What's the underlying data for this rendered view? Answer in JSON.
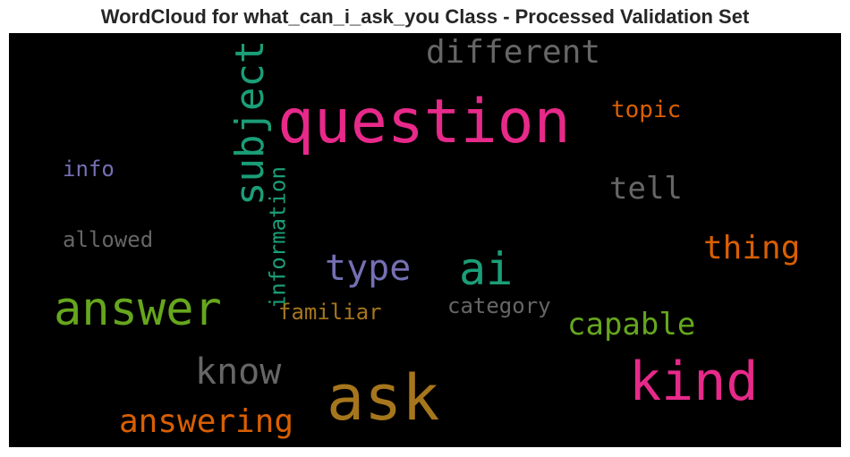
{
  "chart_data": {
    "type": "wordcloud",
    "title": "WordCloud for what_can_i_ask_you Class - Processed Validation Set",
    "background": "#000000",
    "words": [
      {
        "text": "question",
        "color": "#e7298a"
      },
      {
        "text": "ask",
        "color": "#a6761d"
      },
      {
        "text": "kind",
        "color": "#e7298a"
      },
      {
        "text": "answer",
        "color": "#66a61e"
      },
      {
        "text": "subject",
        "color": "#1b9e77"
      },
      {
        "text": "ai",
        "color": "#1b9e77"
      },
      {
        "text": "type",
        "color": "#7570b3"
      },
      {
        "text": "different",
        "color": "#666666"
      },
      {
        "text": "know",
        "color": "#666666"
      },
      {
        "text": "answering",
        "color": "#d95f02"
      },
      {
        "text": "thing",
        "color": "#d95f02"
      },
      {
        "text": "information",
        "color": "#1b9e77"
      },
      {
        "text": "capable",
        "color": "#66a61e"
      },
      {
        "text": "tell",
        "color": "#666666"
      },
      {
        "text": "topic",
        "color": "#d95f02"
      },
      {
        "text": "info",
        "color": "#7570b3"
      },
      {
        "text": "allowed",
        "color": "#666666"
      },
      {
        "text": "familiar",
        "color": "#a6761d"
      },
      {
        "text": "category",
        "color": "#666666"
      }
    ]
  }
}
